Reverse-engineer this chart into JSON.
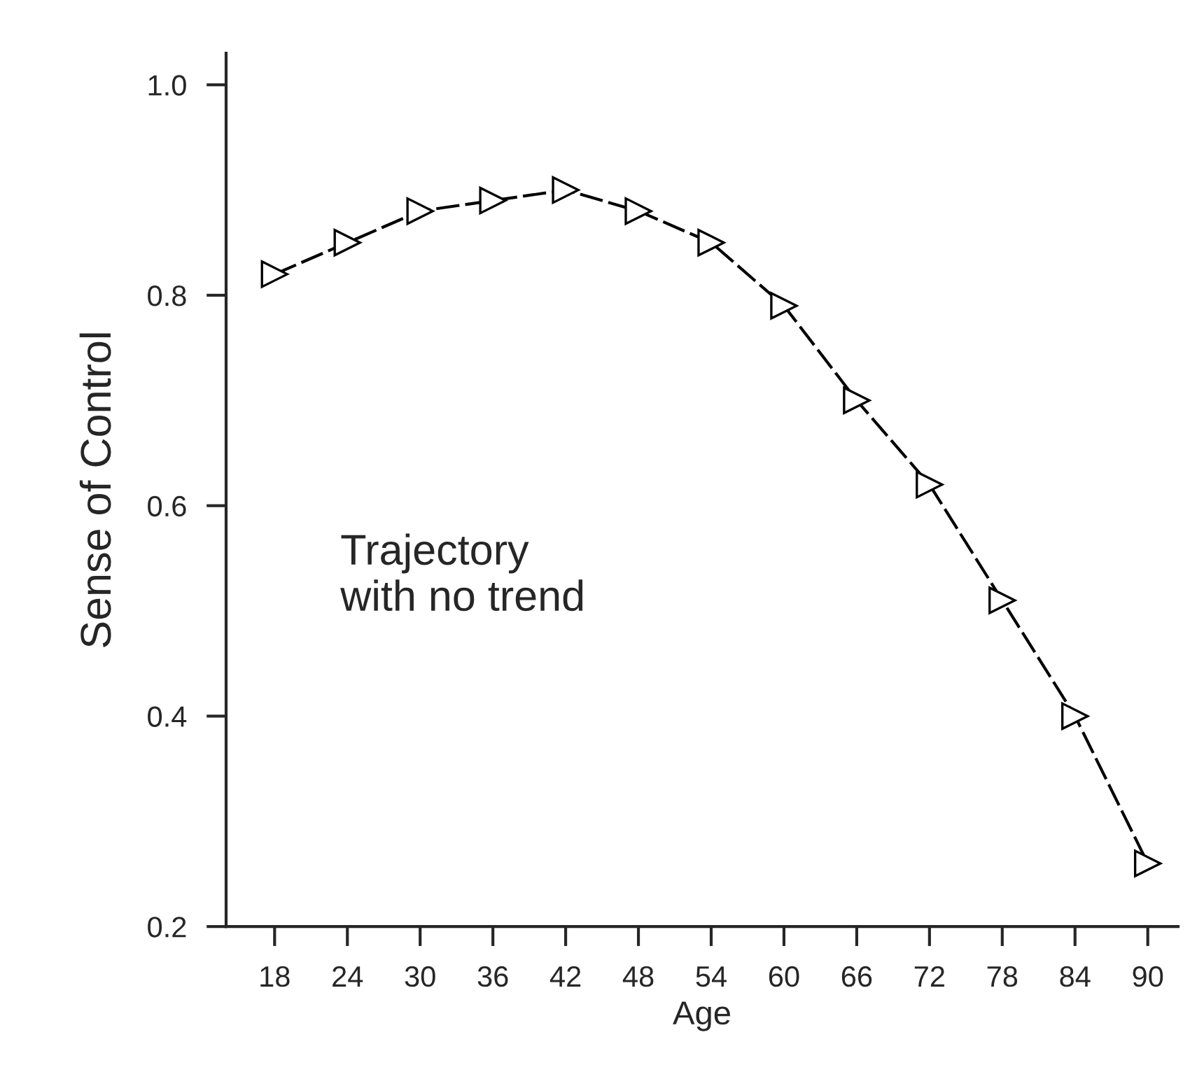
{
  "chart_data": {
    "type": "line",
    "xlabel": "Age",
    "ylabel": "Sense of Control",
    "x": [
      18,
      24,
      30,
      36,
      42,
      48,
      54,
      60,
      66,
      72,
      78,
      84,
      90
    ],
    "series": [
      {
        "color": "#000000",
        "values": [
          0.82,
          0.85,
          0.88,
          0.89,
          0.9,
          0.88,
          0.85,
          0.79,
          0.7,
          0.62,
          0.51,
          0.4,
          0.26
        ]
      }
    ],
    "xlim": [
      14,
      92.5
    ],
    "xticks": [
      18,
      24,
      30,
      36,
      42,
      48,
      54,
      60,
      66,
      72,
      78,
      84,
      90
    ],
    "ylim": [
      0.2,
      1.03
    ],
    "yticks": [
      {
        "value": 0.2,
        "label": "0.2"
      },
      {
        "value": 0.4,
        "label": "0.4"
      },
      {
        "value": 0.6,
        "label": "0.6"
      },
      {
        "value": 0.8,
        "label": "0.8"
      },
      {
        "value": 1.0,
        "label": "1.0"
      }
    ],
    "marker": "triangle",
    "line_style": "dashed",
    "grid": false,
    "annotations": [
      "Trajectory\nwith no trend"
    ]
  }
}
